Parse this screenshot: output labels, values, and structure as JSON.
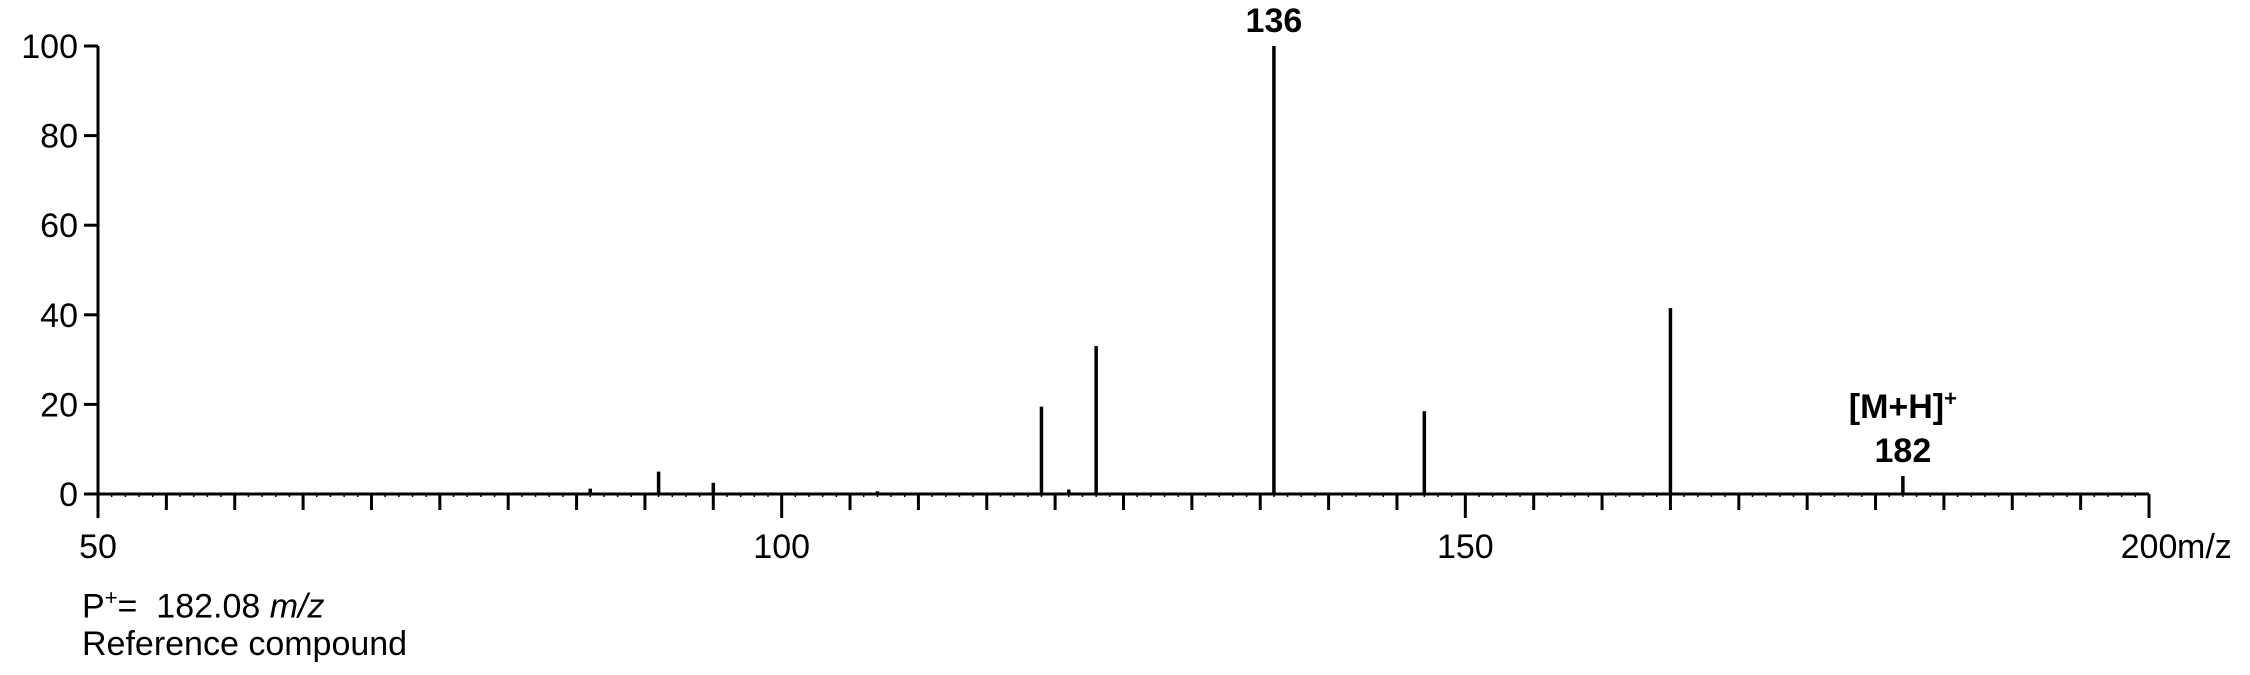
{
  "chart_data": {
    "type": "bar",
    "xlabel": "m/z",
    "xlim": [
      50,
      200
    ],
    "ylim": [
      0,
      100
    ],
    "xticks": [
      50,
      100,
      150,
      200
    ],
    "yticks": [
      0,
      20,
      40,
      60,
      80,
      100
    ],
    "peaks": [
      {
        "mz": 86,
        "intensity": 1.2
      },
      {
        "mz": 91,
        "intensity": 5
      },
      {
        "mz": 95,
        "intensity": 2.5
      },
      {
        "mz": 107,
        "intensity": 0.6
      },
      {
        "mz": 119,
        "intensity": 19.5
      },
      {
        "mz": 121,
        "intensity": 1
      },
      {
        "mz": 123,
        "intensity": 33
      },
      {
        "mz": 136,
        "intensity": 100
      },
      {
        "mz": 147,
        "intensity": 18.5
      },
      {
        "mz": 165,
        "intensity": 41.5
      },
      {
        "mz": 182,
        "intensity": 4
      }
    ],
    "annotations": [
      {
        "mz": 136,
        "lines": [
          "136"
        ]
      },
      {
        "mz": 182,
        "lines": [
          "[M+H]",
          "182"
        ],
        "superscript": "+"
      }
    ]
  },
  "caption": {
    "precursor_prefix": "P",
    "precursor_sup": "+",
    "precursor_eq": "=  182.08 ",
    "precursor_unit": "m/z",
    "description": "Reference compound"
  }
}
